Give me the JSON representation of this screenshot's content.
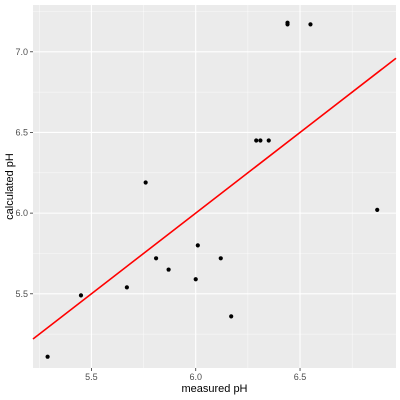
{
  "chart_data": {
    "type": "scatter",
    "title": "",
    "xlabel": "measured pH",
    "ylabel": "calculated pH",
    "xlim": [
      5.22,
      6.96
    ],
    "ylim": [
      5.04,
      7.29
    ],
    "x_ticks": [
      5.5,
      6.0,
      6.5
    ],
    "x_tick_labels": [
      "5.5",
      "6.0",
      "6.5"
    ],
    "y_ticks": [
      5.5,
      6.0,
      6.5,
      7.0
    ],
    "y_tick_labels": [
      "5.5",
      "6.0",
      "6.5",
      "7.0"
    ],
    "grid": true,
    "series": [
      {
        "type": "scatter",
        "points": [
          {
            "x": 5.29,
            "y": 5.11
          },
          {
            "x": 5.45,
            "y": 5.49
          },
          {
            "x": 5.67,
            "y": 5.54
          },
          {
            "x": 5.76,
            "y": 6.19
          },
          {
            "x": 5.81,
            "y": 5.72
          },
          {
            "x": 5.87,
            "y": 5.65
          },
          {
            "x": 6.0,
            "y": 5.59
          },
          {
            "x": 6.01,
            "y": 5.8
          },
          {
            "x": 6.12,
            "y": 5.72
          },
          {
            "x": 6.17,
            "y": 5.36
          },
          {
            "x": 6.29,
            "y": 6.45
          },
          {
            "x": 6.31,
            "y": 6.45
          },
          {
            "x": 6.35,
            "y": 6.45
          },
          {
            "x": 6.44,
            "y": 7.17
          },
          {
            "x": 6.44,
            "y": 7.18
          },
          {
            "x": 6.55,
            "y": 7.17
          },
          {
            "x": 6.87,
            "y": 6.02
          }
        ]
      },
      {
        "type": "line",
        "points": [
          {
            "x": 5.22,
            "y": 5.22
          },
          {
            "x": 6.96,
            "y": 6.96
          }
        ]
      }
    ]
  },
  "colors": {
    "panel_background": "#ebebeb",
    "gridline_major": "#ffffff",
    "point": "#000000",
    "reference_line": "#ff0000",
    "tick_text": "#4d4d4d",
    "axis_title_text": "#000000"
  }
}
